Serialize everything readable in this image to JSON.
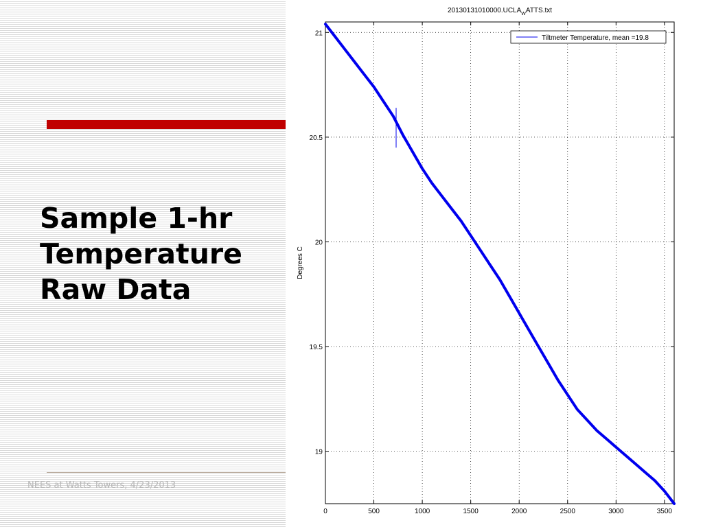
{
  "slide": {
    "title_lines": [
      "Sample 1-hr",
      "Temperature",
      "Raw Data"
    ],
    "footer": "NEES at Watts Towers, 4/23/2013",
    "accent_color": "#c00000"
  },
  "chart_data": {
    "type": "line",
    "title_main": "20130131010000.UCLA",
    "title_sub": "W",
    "title_tail": "ATTS.txt",
    "xlabel": "",
    "ylabel": "Degrees C",
    "xlim": [
      0,
      3600
    ],
    "ylim": [
      18.75,
      21.05
    ],
    "xticks": [
      0,
      500,
      1000,
      1500,
      2000,
      2500,
      3000,
      3500
    ],
    "yticks": [
      19,
      19.5,
      20,
      20.5,
      21
    ],
    "ytick_labels": [
      "19",
      "19.5",
      "20",
      "20.5",
      "21"
    ],
    "grid": true,
    "legend_position": "top-right",
    "series": [
      {
        "name": "Tiltmeter Temperature, mean =19.8",
        "color": "#0000ee",
        "x": [
          0,
          100,
          200,
          300,
          400,
          500,
          600,
          700,
          800,
          900,
          1000,
          1100,
          1200,
          1300,
          1400,
          1500,
          1600,
          1700,
          1800,
          1900,
          2000,
          2100,
          2200,
          2300,
          2400,
          2500,
          2600,
          2700,
          2800,
          2900,
          3000,
          3100,
          3200,
          3300,
          3400,
          3500,
          3600
        ],
        "y": [
          21.04,
          20.98,
          20.92,
          20.86,
          20.8,
          20.74,
          20.67,
          20.6,
          20.51,
          20.43,
          20.35,
          20.28,
          20.22,
          20.16,
          20.1,
          20.03,
          19.96,
          19.89,
          19.82,
          19.74,
          19.66,
          19.58,
          19.5,
          19.42,
          19.34,
          19.27,
          19.2,
          19.15,
          19.1,
          19.06,
          19.02,
          18.98,
          18.94,
          18.9,
          18.86,
          18.81,
          18.75
        ]
      }
    ],
    "spike": {
      "x": 730,
      "ymin": 20.45,
      "ymax": 20.64
    }
  }
}
